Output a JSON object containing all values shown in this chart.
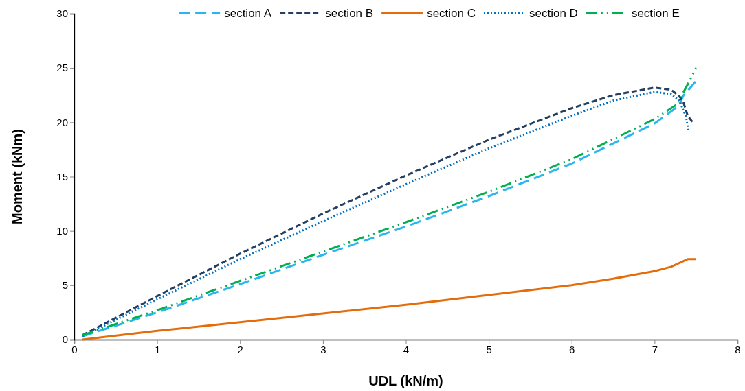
{
  "chart_data": {
    "type": "line",
    "xlabel": "UDL (kN/m)",
    "ylabel": "Moment (kNm)",
    "xlim": [
      0,
      8
    ],
    "ylim": [
      0,
      30
    ],
    "xticks": [
      0,
      1,
      2,
      3,
      4,
      5,
      6,
      7,
      8
    ],
    "yticks": [
      0,
      5,
      10,
      15,
      20,
      25,
      30
    ],
    "grid": false,
    "legend": "top",
    "marker": "none",
    "series": [
      {
        "name": "section A",
        "color": "#29b6f0",
        "line_style": "longdash",
        "x": [
          0.1,
          1,
          2,
          3,
          4,
          5,
          6,
          7,
          7.2,
          7.3,
          7.35,
          7.4,
          7.5
        ],
        "values": [
          0.3,
          2.5,
          5.1,
          7.8,
          10.4,
          13.2,
          16.2,
          19.9,
          21.0,
          21.6,
          22.5,
          22.9,
          23.8
        ]
      },
      {
        "name": "section B",
        "color": "#243f60",
        "line_style": "dashed",
        "x": [
          0.1,
          1,
          2,
          3,
          4,
          5,
          6,
          6.5,
          7,
          7.2,
          7.3,
          7.35,
          7.4,
          7.46
        ],
        "values": [
          0.4,
          4.0,
          7.9,
          11.6,
          15.1,
          18.4,
          21.3,
          22.5,
          23.2,
          23.0,
          22.4,
          21.8,
          20.6,
          20.0
        ]
      },
      {
        "name": "section C",
        "color": "#e46c0a",
        "line_style": "solid",
        "x": [
          0.1,
          1,
          2,
          3,
          4,
          5,
          6,
          6.5,
          7,
          7.2,
          7.4,
          7.5
        ],
        "values": [
          0.0,
          0.8,
          1.6,
          2.4,
          3.2,
          4.1,
          5.0,
          5.6,
          6.3,
          6.7,
          7.4,
          7.4
        ]
      },
      {
        "name": "section D",
        "color": "#0070c0",
        "line_style": "dotted",
        "x": [
          0.1,
          1,
          2,
          3,
          4,
          5,
          6,
          6.5,
          7,
          7.2,
          7.3,
          7.38,
          7.41
        ],
        "values": [
          0.3,
          3.7,
          7.4,
          10.9,
          14.3,
          17.6,
          20.6,
          22.0,
          22.8,
          22.6,
          22.0,
          20.5,
          19.1
        ]
      },
      {
        "name": "section E",
        "color": "#00b050",
        "line_style": "dashdotdot",
        "x": [
          0.1,
          1,
          2,
          3,
          4,
          5,
          6,
          7,
          7.2,
          7.3,
          7.35,
          7.4,
          7.5
        ],
        "values": [
          0.4,
          2.7,
          5.4,
          8.1,
          10.8,
          13.6,
          16.6,
          20.3,
          21.3,
          21.8,
          22.8,
          23.5,
          25.0
        ]
      }
    ]
  }
}
